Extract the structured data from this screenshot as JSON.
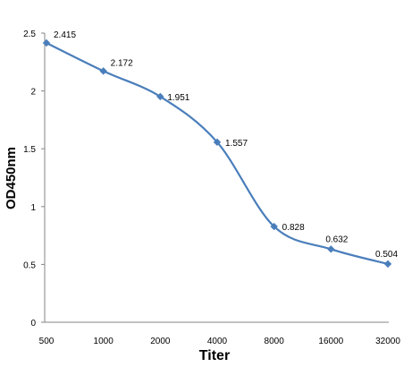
{
  "chart_data": {
    "type": "line",
    "categories": [
      "500",
      "1000",
      "2000",
      "4000",
      "8000",
      "16000",
      "32000"
    ],
    "series": [
      {
        "values": [
          2.415,
          2.172,
          1.951,
          1.557,
          0.828,
          0.632,
          0.504
        ]
      }
    ],
    "data_labels": [
      "2.415",
      "2.172",
      "1.951",
      "1.557",
      "0.828",
      "0.632",
      "0.504"
    ],
    "y_ticks": [
      "0",
      "0.5",
      "1",
      "1.5",
      "2",
      "2.5"
    ],
    "xlabel": "Titer",
    "ylabel": "OD450nm",
    "ylim": [
      0,
      2.5
    ],
    "grid": false,
    "smooth": true,
    "colors": {
      "series": "#4a7ebb",
      "axis": "#868686"
    }
  }
}
